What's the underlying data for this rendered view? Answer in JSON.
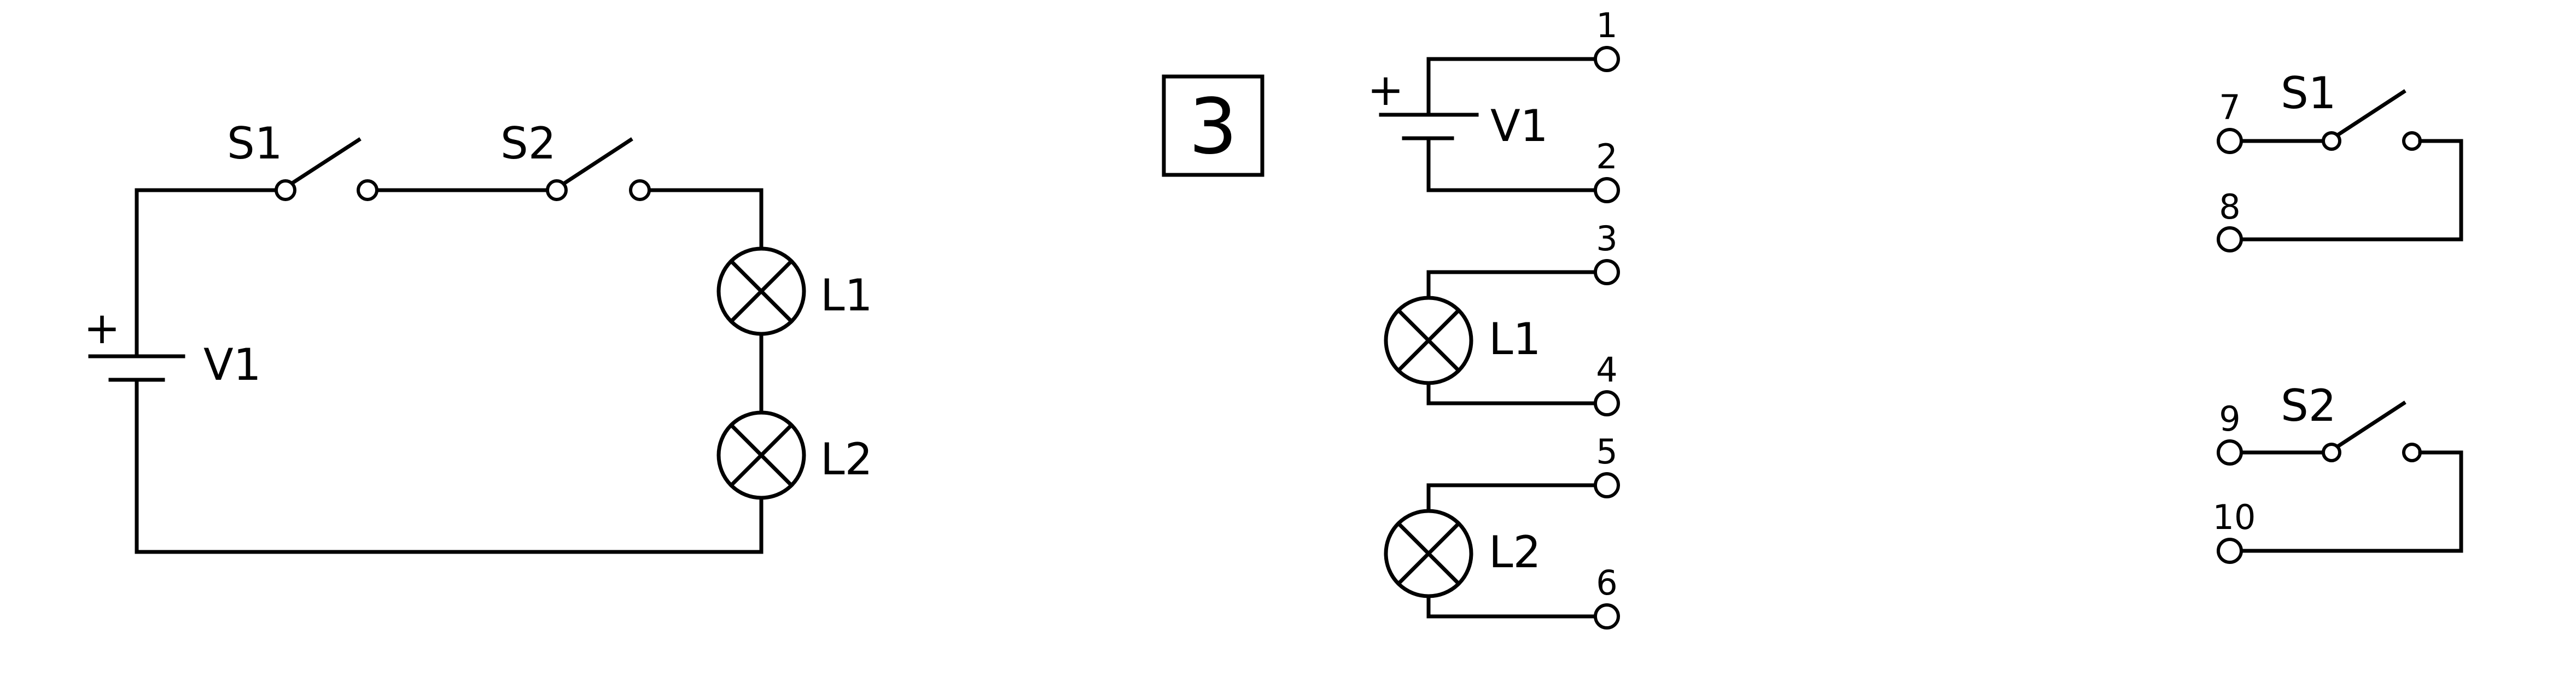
{
  "colors": {
    "line": "#000000",
    "background": "#ffffff"
  },
  "schematic": {
    "s1": "S1",
    "s2": "S2",
    "v1": "V1",
    "l1": "L1",
    "l2": "L2",
    "plus": "+"
  },
  "wiring_task": {
    "number": "3",
    "v1": "V1",
    "l1": "L1",
    "l2": "L2",
    "plus": "+",
    "terminals": [
      "1",
      "2",
      "3",
      "4",
      "5",
      "6"
    ]
  },
  "switches": {
    "s1": "S1",
    "s2": "S2",
    "terminals": [
      "7",
      "8",
      "9",
      "10"
    ]
  }
}
